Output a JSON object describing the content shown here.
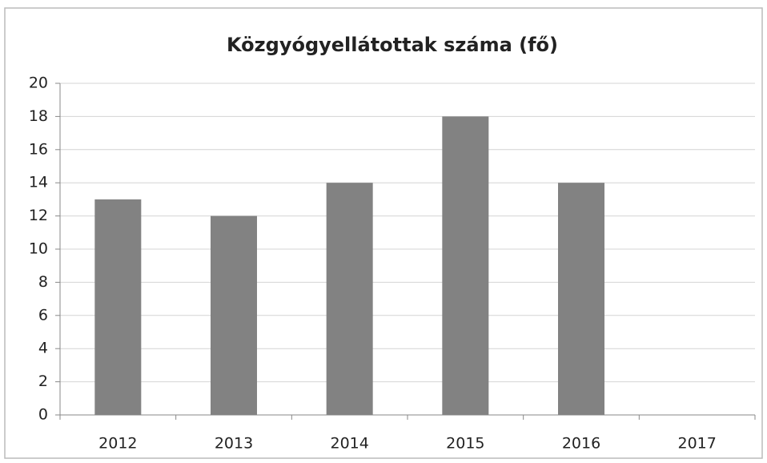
{
  "chart_data": {
    "type": "bar",
    "title": "Közgyógyellátottak száma (fő)",
    "categories": [
      "2012",
      "2013",
      "2014",
      "2015",
      "2016",
      "2017"
    ],
    "values": [
      13,
      12,
      14,
      18,
      14,
      null
    ],
    "color": "#828282",
    "ylim": [
      0,
      20
    ],
    "yticks": [
      0,
      2,
      4,
      6,
      8,
      10,
      12,
      14,
      16,
      18,
      20
    ],
    "grid": true
  }
}
